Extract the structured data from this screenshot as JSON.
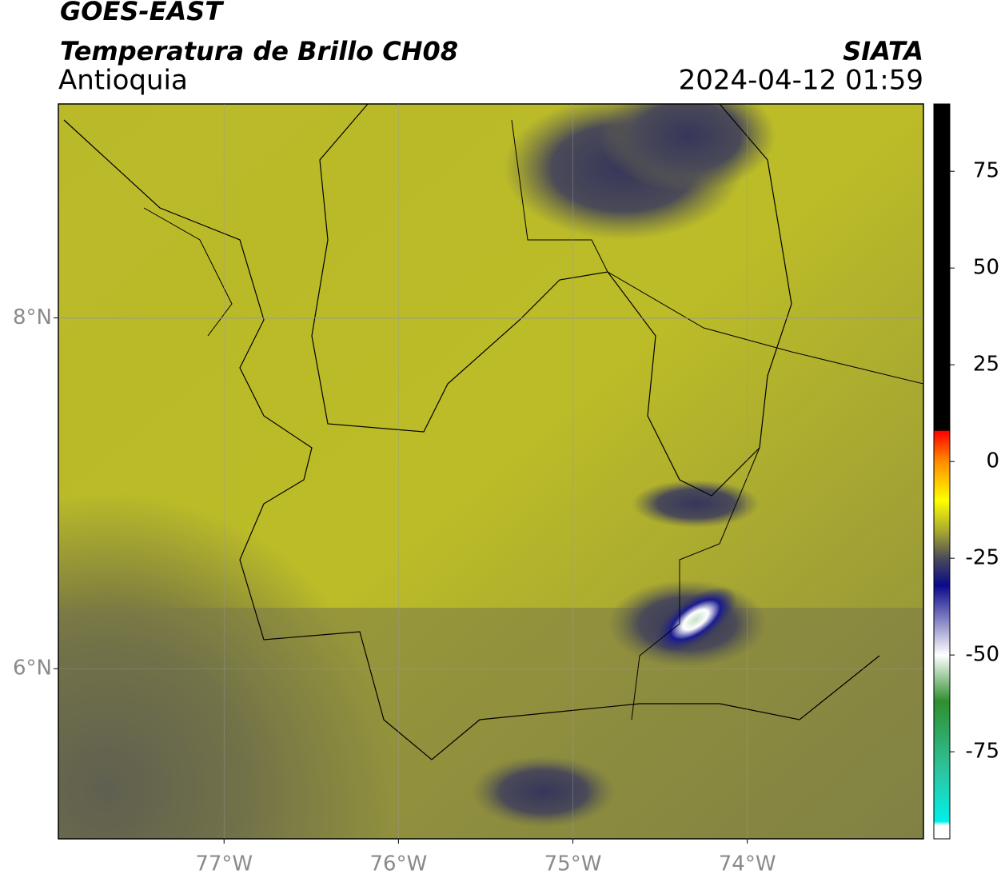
{
  "header": {
    "title": "GOES-EAST",
    "subtitle": "Temperatura de Brillo CH08",
    "region": "Antioquia",
    "source": "SIATA",
    "datetime": "2024-04-12 01:59"
  },
  "map": {
    "xlim": [
      -77.95,
      -72.99
    ],
    "ylim": [
      5.03,
      9.22
    ],
    "xticks": [
      {
        "value": -77,
        "label": "77°W"
      },
      {
        "value": -76,
        "label": "76°W"
      },
      {
        "value": -75,
        "label": "75°W"
      },
      {
        "value": -74,
        "label": "74°W"
      }
    ],
    "yticks": [
      {
        "value": 8,
        "label": "8°N"
      },
      {
        "value": 6,
        "label": "6°N"
      }
    ]
  },
  "colorbar": {
    "lim": [
      -97.5,
      92.4
    ],
    "ticks": [
      75,
      50,
      25,
      0,
      -25,
      -50,
      -75
    ],
    "stops": [
      {
        "value": 92.4,
        "color": "#000000"
      },
      {
        "value": 8,
        "color": "#000000"
      },
      {
        "value": 7.9,
        "color": "#ff0000"
      },
      {
        "value": 0,
        "color": "#ff8c00"
      },
      {
        "value": -10,
        "color": "#ffff00"
      },
      {
        "value": -18,
        "color": "#a8a830"
      },
      {
        "value": -25,
        "color": "#4a4a5a"
      },
      {
        "value": -32,
        "color": "#0a0a8a"
      },
      {
        "value": -50,
        "color": "#ffffff"
      },
      {
        "value": -62,
        "color": "#2f8f2f"
      },
      {
        "value": -80,
        "color": "#2ec4a0"
      },
      {
        "value": -93,
        "color": "#00f0e8"
      },
      {
        "value": -94,
        "color": "#ffffff"
      },
      {
        "value": -97.5,
        "color": "#ffffff"
      }
    ]
  }
}
